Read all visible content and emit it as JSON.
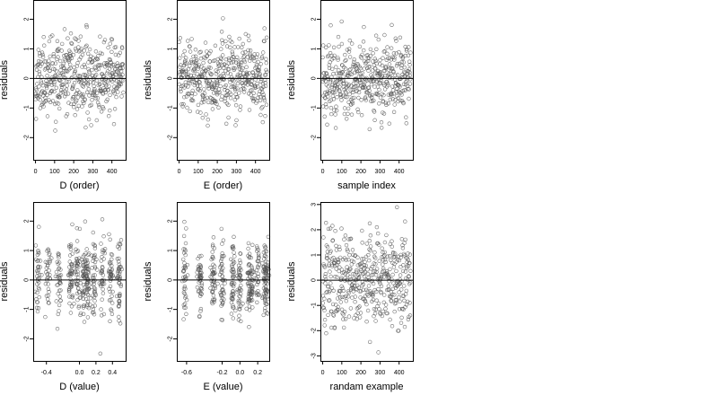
{
  "figure": {
    "background": "#ffffff",
    "point_color": "#555555",
    "axis_color": "#000000"
  },
  "chart_data": [
    {
      "type": "scatter",
      "title": "",
      "xlabel": "D (order)",
      "ylabel": "residuals",
      "xlim": [
        -12,
        472
      ],
      "ylim": [
        -2.75,
        2.65
      ],
      "hline": 0,
      "grid": false,
      "legend": "none",
      "xticks": [
        0,
        100,
        200,
        300,
        400
      ],
      "yticks": [
        -2,
        -1,
        0,
        1,
        2
      ],
      "xtick_labels": [
        "0",
        "100",
        "200",
        "300",
        "400"
      ],
      "ytick_labels": [
        "-2",
        "-1",
        "0",
        "1",
        "2"
      ],
      "points": {
        "seed": 11,
        "n": 460,
        "x_dist": "index",
        "x_range": [
          0,
          460
        ],
        "sd": 0.62,
        "min": -2.5,
        "max": 2.5
      }
    },
    {
      "type": "scatter",
      "title": "",
      "xlabel": "E (order)",
      "ylabel": "residuals",
      "xlim": [
        -12,
        472
      ],
      "ylim": [
        -2.75,
        2.65
      ],
      "hline": 0,
      "grid": false,
      "legend": "none",
      "xticks": [
        0,
        100,
        200,
        300,
        400
      ],
      "yticks": [
        -2,
        -1,
        0,
        1,
        2
      ],
      "xtick_labels": [
        "0",
        "100",
        "200",
        "300",
        "400"
      ],
      "ytick_labels": [
        "-2",
        "-1",
        "0",
        "1",
        "2"
      ],
      "points": {
        "seed": 23,
        "n": 460,
        "x_dist": "index",
        "x_range": [
          0,
          460
        ],
        "sd": 0.62,
        "min": -2.6,
        "max": 2.5
      }
    },
    {
      "type": "scatter",
      "title": "",
      "xlabel": "sample index",
      "ylabel": "residuals",
      "xlim": [
        -12,
        472
      ],
      "ylim": [
        -2.75,
        2.65
      ],
      "hline": 0,
      "grid": false,
      "legend": "none",
      "xticks": [
        0,
        100,
        200,
        300,
        400
      ],
      "yticks": [
        -2,
        -1,
        0,
        1,
        2
      ],
      "xtick_labels": [
        "0",
        "100",
        "200",
        "300",
        "400"
      ],
      "ytick_labels": [
        "-2",
        "-1",
        "0",
        "1",
        "2"
      ],
      "points": {
        "seed": 37,
        "n": 460,
        "x_dist": "index",
        "x_range": [
          0,
          460
        ],
        "sd": 0.62,
        "min": -2.5,
        "max": 2.5
      }
    },
    {
      "type": "scatter",
      "title": "",
      "xlabel": "D (value)",
      "ylabel": "residuals",
      "xlim": [
        -0.56,
        0.56
      ],
      "ylim": [
        -2.75,
        2.65
      ],
      "hline": 0,
      "grid": false,
      "legend": "none",
      "xticks": [
        -0.4,
        0.0,
        0.2,
        0.4
      ],
      "yticks": [
        -2,
        -1,
        0,
        1,
        2
      ],
      "xtick_labels": [
        "-0.4",
        "0.0",
        "0.2",
        "0.4"
      ],
      "ytick_labels": [
        "-2",
        "-1",
        "0",
        "1",
        "2"
      ],
      "points": {
        "seed": 51,
        "n": 460,
        "x_dist": "clusters",
        "clusters": [
          -0.5,
          -0.38,
          -0.25,
          -0.1,
          -0.02,
          0.05,
          0.1,
          0.18,
          0.28,
          0.38,
          0.48
        ],
        "jitter": 0.015,
        "sd": 0.62,
        "min": -2.5,
        "max": 2.5
      }
    },
    {
      "type": "scatter",
      "title": "",
      "xlabel": "E (value)",
      "ylabel": "residuals",
      "xlim": [
        -0.71,
        0.33
      ],
      "ylim": [
        -2.75,
        2.65
      ],
      "hline": 0,
      "grid": false,
      "legend": "none",
      "xticks": [
        -0.6,
        -0.2,
        0.0,
        0.2
      ],
      "yticks": [
        -2,
        -1,
        0,
        1,
        2
      ],
      "xtick_labels": [
        "-0.6",
        "-0.2",
        "0.0",
        "0.2"
      ],
      "ytick_labels": [
        "-2",
        "-1",
        "0",
        "1",
        "2"
      ],
      "points": {
        "seed": 67,
        "n": 460,
        "x_dist": "clusters",
        "clusters": [
          -0.62,
          -0.45,
          -0.3,
          -0.2,
          -0.08,
          0.0,
          0.1,
          0.13,
          0.2,
          0.28,
          0.3
        ],
        "jitter": 0.012,
        "sd": 0.62,
        "min": -2.6,
        "max": 2.5
      }
    },
    {
      "type": "scatter",
      "title": "",
      "xlabel": "randam example",
      "ylabel": "residuals",
      "xlim": [
        -12,
        472
      ],
      "ylim": [
        -3.2,
        3.1
      ],
      "hline": 0,
      "grid": false,
      "legend": "none",
      "xticks": [
        0,
        100,
        200,
        300,
        400
      ],
      "yticks": [
        -3,
        -2,
        -1,
        0,
        1,
        2,
        3
      ],
      "xtick_labels": [
        "0",
        "100",
        "200",
        "300",
        "400"
      ],
      "ytick_labels": [
        "-3",
        "-2",
        "-1",
        "0",
        "1",
        "2",
        "3"
      ],
      "points": {
        "seed": 83,
        "n": 460,
        "x_dist": "index",
        "x_range": [
          0,
          460
        ],
        "sd": 1.0,
        "min": -3.0,
        "max": 2.9
      }
    }
  ]
}
